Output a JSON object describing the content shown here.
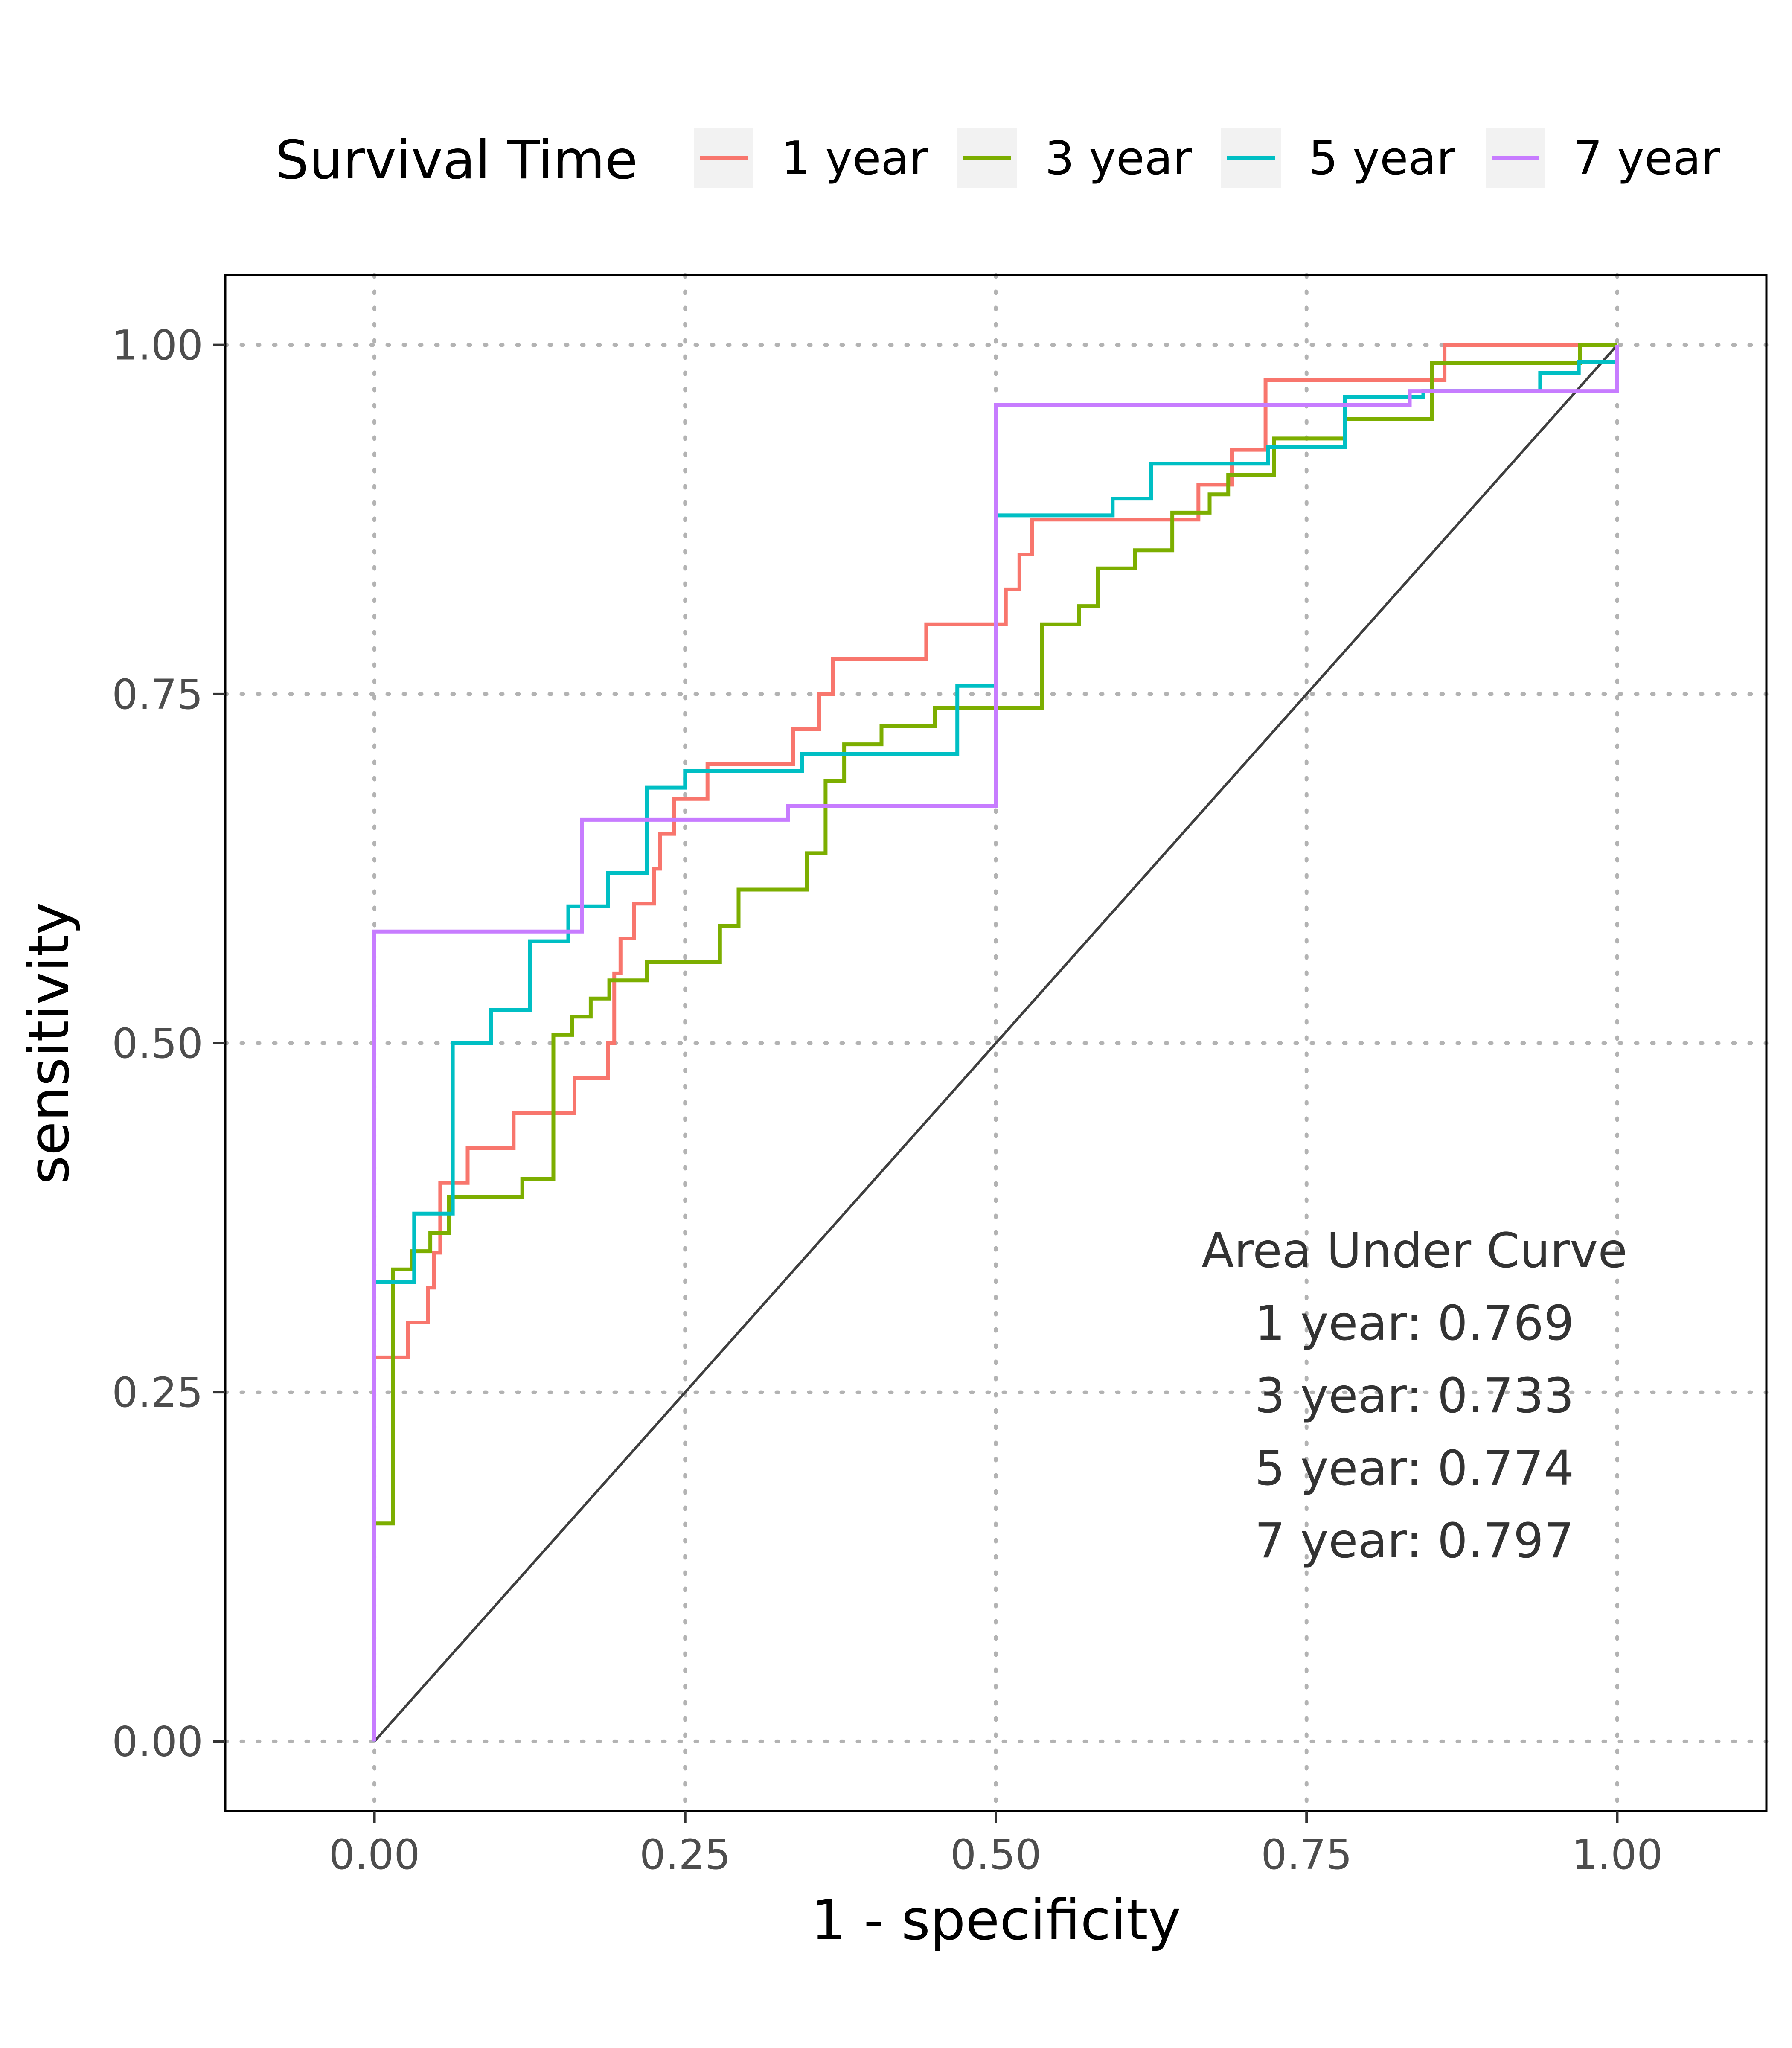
{
  "chart_data": {
    "type": "line",
    "xlabel": "1 - specificity",
    "ylabel": "sensitivity",
    "xlim": [
      -0.12,
      1.12
    ],
    "ylim": [
      -0.05,
      1.05
    ],
    "x_ticks": [
      0.0,
      0.25,
      0.5,
      0.75,
      1.0
    ],
    "x_tick_labels": [
      "0.00",
      "0.25",
      "0.50",
      "0.75",
      "1.00"
    ],
    "y_ticks": [
      0.0,
      0.25,
      0.5,
      0.75,
      1.0
    ],
    "y_tick_labels": [
      "0.00",
      "0.25",
      "0.50",
      "0.75",
      "1.00"
    ],
    "grid": true,
    "legend": {
      "title": "Survival Time",
      "placement": "top",
      "items": [
        "1 year",
        "3 year",
        "5 year",
        "7 year"
      ]
    },
    "reference_line": {
      "from": [
        0,
        0
      ],
      "to": [
        1,
        1
      ],
      "color": "#404040"
    },
    "series": [
      {
        "name": "1 year",
        "color": "#F8766D",
        "points": [
          [
            0,
            0
          ],
          [
            0,
            0.275
          ],
          [
            0.027,
            0.275
          ],
          [
            0.027,
            0.3
          ],
          [
            0.043,
            0.3
          ],
          [
            0.043,
            0.325
          ],
          [
            0.048,
            0.325
          ],
          [
            0.048,
            0.35
          ],
          [
            0.053,
            0.35
          ],
          [
            0.053,
            0.375
          ],
          [
            0.053,
            0.375
          ],
          [
            0.053,
            0.375
          ],
          [
            0.053,
            0.375
          ],
          [
            0.053,
            0.4
          ],
          [
            0.075,
            0.4
          ],
          [
            0.075,
            0.425
          ],
          [
            0.112,
            0.425
          ],
          [
            0.112,
            0.45
          ],
          [
            0.161,
            0.45
          ],
          [
            0.161,
            0.475
          ],
          [
            0.188,
            0.475
          ],
          [
            0.188,
            0.5
          ],
          [
            0.193,
            0.5
          ],
          [
            0.193,
            0.55
          ],
          [
            0.198,
            0.55
          ],
          [
            0.198,
            0.575
          ],
          [
            0.209,
            0.575
          ],
          [
            0.209,
            0.6
          ],
          [
            0.225,
            0.6
          ],
          [
            0.225,
            0.625
          ],
          [
            0.23,
            0.625
          ],
          [
            0.23,
            0.65
          ],
          [
            0.241,
            0.65
          ],
          [
            0.241,
            0.675
          ],
          [
            0.268,
            0.675
          ],
          [
            0.268,
            0.7
          ],
          [
            0.337,
            0.7
          ],
          [
            0.337,
            0.725
          ],
          [
            0.358,
            0.725
          ],
          [
            0.358,
            0.75
          ],
          [
            0.369,
            0.75
          ],
          [
            0.369,
            0.775
          ],
          [
            0.444,
            0.775
          ],
          [
            0.444,
            0.8
          ],
          [
            0.508,
            0.8
          ],
          [
            0.508,
            0.825
          ],
          [
            0.519,
            0.825
          ],
          [
            0.519,
            0.85
          ],
          [
            0.529,
            0.85
          ],
          [
            0.529,
            0.875
          ],
          [
            0.663,
            0.875
          ],
          [
            0.663,
            0.9
          ],
          [
            0.69,
            0.9
          ],
          [
            0.69,
            0.925
          ],
          [
            0.717,
            0.925
          ],
          [
            0.717,
            0.975
          ],
          [
            0.861,
            0.975
          ],
          [
            0.861,
            1
          ],
          [
            1,
            1
          ]
        ]
      },
      {
        "name": "3 year",
        "color": "#7CAE00",
        "points": [
          [
            0,
            0
          ],
          [
            0,
            0.156
          ],
          [
            0.015,
            0.156
          ],
          [
            0.015,
            0.338
          ],
          [
            0.03,
            0.338
          ],
          [
            0.03,
            0.351
          ],
          [
            0.045,
            0.351
          ],
          [
            0.045,
            0.364
          ],
          [
            0.06,
            0.364
          ],
          [
            0.06,
            0.39
          ],
          [
            0.119,
            0.39
          ],
          [
            0.119,
            0.403
          ],
          [
            0.144,
            0.403
          ],
          [
            0.144,
            0.506
          ],
          [
            0.159,
            0.506
          ],
          [
            0.159,
            0.519
          ],
          [
            0.174,
            0.519
          ],
          [
            0.174,
            0.532
          ],
          [
            0.189,
            0.532
          ],
          [
            0.189,
            0.545
          ],
          [
            0.219,
            0.545
          ],
          [
            0.219,
            0.558
          ],
          [
            0.278,
            0.558
          ],
          [
            0.278,
            0.584
          ],
          [
            0.293,
            0.584
          ],
          [
            0.293,
            0.61
          ],
          [
            0.348,
            0.61
          ],
          [
            0.348,
            0.636
          ],
          [
            0.363,
            0.636
          ],
          [
            0.363,
            0.688
          ],
          [
            0.378,
            0.688
          ],
          [
            0.378,
            0.714
          ],
          [
            0.408,
            0.714
          ],
          [
            0.408,
            0.727
          ],
          [
            0.451,
            0.727
          ],
          [
            0.451,
            0.74
          ],
          [
            0.537,
            0.74
          ],
          [
            0.537,
            0.8
          ],
          [
            0.567,
            0.8
          ],
          [
            0.567,
            0.813
          ],
          [
            0.582,
            0.813
          ],
          [
            0.582,
            0.84
          ],
          [
            0.612,
            0.84
          ],
          [
            0.612,
            0.853
          ],
          [
            0.642,
            0.853
          ],
          [
            0.642,
            0.88
          ],
          [
            0.672,
            0.88
          ],
          [
            0.672,
            0.893
          ],
          [
            0.687,
            0.893
          ],
          [
            0.687,
            0.907
          ],
          [
            0.724,
            0.907
          ],
          [
            0.724,
            0.933
          ],
          [
            0.781,
            0.933
          ],
          [
            0.781,
            0.947
          ],
          [
            0.851,
            0.947
          ],
          [
            0.851,
            0.987
          ],
          [
            0.97,
            0.987
          ],
          [
            0.97,
            1
          ],
          [
            1,
            1
          ]
        ]
      },
      {
        "name": "5 year",
        "color": "#00BFC4",
        "points": [
          [
            0,
            0
          ],
          [
            0,
            0.329
          ],
          [
            0.032,
            0.329
          ],
          [
            0.032,
            0.378
          ],
          [
            0.063,
            0.378
          ],
          [
            0.063,
            0.5
          ],
          [
            0.094,
            0.5
          ],
          [
            0.094,
            0.524
          ],
          [
            0.125,
            0.524
          ],
          [
            0.125,
            0.573
          ],
          [
            0.156,
            0.573
          ],
          [
            0.156,
            0.598
          ],
          [
            0.188,
            0.598
          ],
          [
            0.188,
            0.622
          ],
          [
            0.219,
            0.622
          ],
          [
            0.219,
            0.683
          ],
          [
            0.25,
            0.683
          ],
          [
            0.25,
            0.695
          ],
          [
            0.344,
            0.695
          ],
          [
            0.344,
            0.707
          ],
          [
            0.469,
            0.707
          ],
          [
            0.469,
            0.756
          ],
          [
            0.5,
            0.756
          ],
          [
            0.5,
            0.878
          ],
          [
            0.594,
            0.878
          ],
          [
            0.594,
            0.89
          ],
          [
            0.625,
            0.89
          ],
          [
            0.625,
            0.915
          ],
          [
            0.719,
            0.915
          ],
          [
            0.719,
            0.927
          ],
          [
            0.781,
            0.927
          ],
          [
            0.781,
            0.963
          ],
          [
            0.844,
            0.963
          ],
          [
            0.844,
            0.967
          ],
          [
            0.938,
            0.967
          ],
          [
            0.938,
            0.98
          ],
          [
            0.969,
            0.98
          ],
          [
            0.969,
            0.988
          ],
          [
            1,
            0.988
          ],
          [
            1,
            1
          ]
        ]
      },
      {
        "name": "7 year",
        "color": "#C77CFF",
        "points": [
          [
            0,
            0
          ],
          [
            0,
            0.58
          ],
          [
            0.167,
            0.58
          ],
          [
            0.167,
            0.66
          ],
          [
            0.333,
            0.66
          ],
          [
            0.333,
            0.67
          ],
          [
            0.5,
            0.67
          ],
          [
            0.5,
            0.957
          ],
          [
            0.833,
            0.957
          ],
          [
            0.833,
            0.967
          ],
          [
            1,
            0.967
          ],
          [
            1,
            1
          ]
        ]
      }
    ],
    "annotation": {
      "title": "Area Under Curve",
      "lines": [
        "1 year: 0.769",
        "3 year: 0.733",
        "5 year: 0.774",
        "7 year: 0.797"
      ]
    }
  }
}
